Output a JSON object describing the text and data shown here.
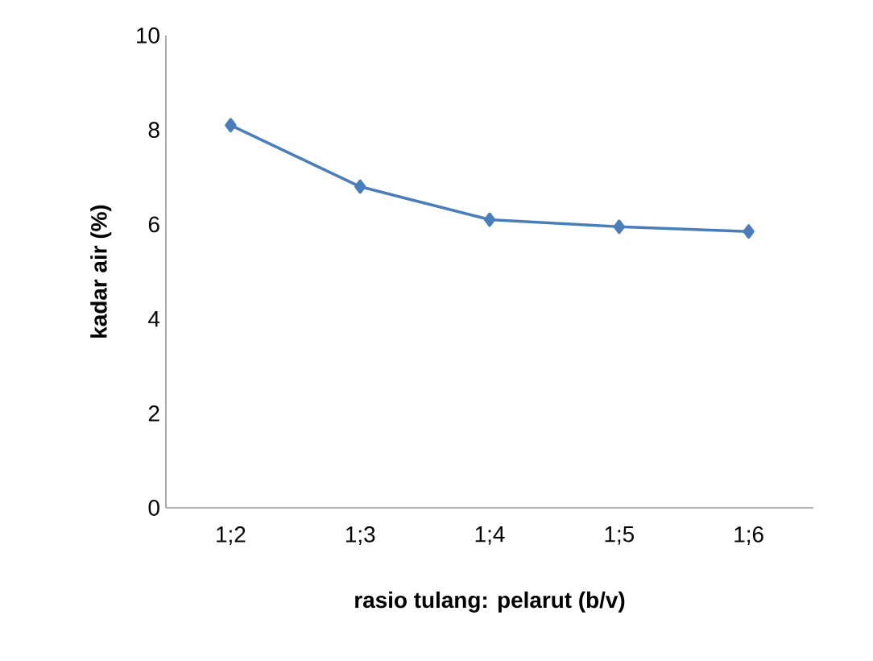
{
  "chart_data": {
    "type": "line",
    "xlabel": "rasio tulang: pelarut (b/v)",
    "ylabel": "kadar air (%)",
    "categories": [
      "1;2",
      "1;3",
      "1;4",
      "1;5",
      "1;6"
    ],
    "series": [
      {
        "color": "#4a7ebb",
        "values": [
          8.1,
          6.8,
          6.1,
          5.95,
          5.85
        ]
      }
    ],
    "ylim": [
      0,
      10
    ],
    "yticks": [
      0,
      2,
      4,
      6,
      8,
      10
    ],
    "grid": false,
    "marker": "diamond",
    "line_style": "solid"
  }
}
